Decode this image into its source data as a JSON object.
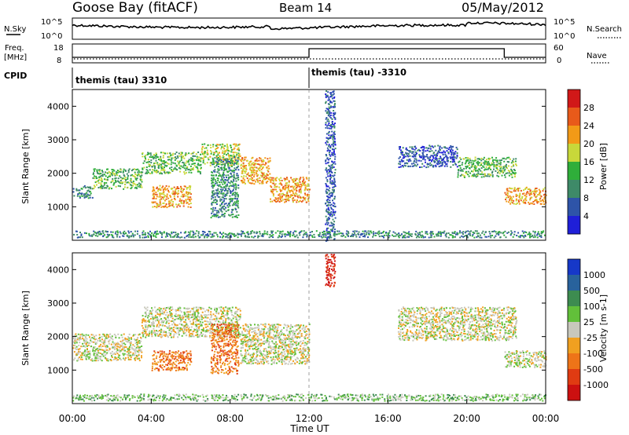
{
  "header": {
    "station": "Goose Bay (fitACF)",
    "beam": "Beam 14",
    "date": "05/May/2012"
  },
  "status_panels": {
    "nsky_label": "N.Sky",
    "nsearch_label": "N.Search",
    "freq_label_1": "Freq.",
    "freq_label_2": "[MHz]",
    "nave_label": "Nave",
    "cpid_label": "CPID",
    "noise_ticks_left": [
      "10^5",
      "10^0"
    ],
    "noise_ticks_right": [
      "10^5",
      "10^0"
    ],
    "freq_ticks": [
      "18",
      "8"
    ],
    "nave_ticks": [
      "60",
      "0"
    ],
    "cpid_segments": [
      {
        "label": "themis (tau) 3310",
        "start_hour": 0,
        "end_hour": 12
      },
      {
        "label": "themis (tau) -3310",
        "start_hour": 12,
        "end_hour": 24
      }
    ],
    "nave_step": {
      "low": 25,
      "high": 55,
      "high_start_hour": 12,
      "high_end_hour": 21.9
    }
  },
  "x_axis": {
    "label": "Time UT",
    "ticks": [
      "00:00",
      "04:00",
      "08:00",
      "12:00",
      "16:00",
      "20:00",
      "00:00"
    ]
  },
  "colors": {
    "power": [
      "#1f1fd8",
      "#2e54a8",
      "#3e8a68",
      "#2fae3a",
      "#c8d83a",
      "#f29a17",
      "#e85a1a",
      "#d11818"
    ],
    "velocity": [
      "#1638c8",
      "#28629c",
      "#3d8c50",
      "#62c03a",
      "#c8c8bc",
      "#f0a020",
      "#ee7418",
      "#e03b12",
      "#cc1010"
    ]
  },
  "chart_data": [
    {
      "type": "heatmap",
      "ylabel": "Slant Range [km]",
      "ylim": [
        0,
        4500
      ],
      "yticks": [
        "1000",
        "2000",
        "3000",
        "4000"
      ],
      "colorbar_label": "Power [dB]",
      "colorbar_ticks": [
        "4",
        "8",
        "12",
        "16",
        "20",
        "24",
        "28"
      ],
      "bands": [
        {
          "t0": 0.0,
          "t1": 1.0,
          "r0": 1280,
          "r1": 1650,
          "level": 2
        },
        {
          "t0": 1.0,
          "t1": 3.5,
          "r0": 1550,
          "r1": 2150,
          "level": 3
        },
        {
          "t0": 3.5,
          "t1": 6.5,
          "r0": 2000,
          "r1": 2650,
          "level": 3
        },
        {
          "t0": 4.0,
          "t1": 6.0,
          "r0": 1000,
          "r1": 1650,
          "level": 5
        },
        {
          "t0": 6.5,
          "t1": 8.5,
          "r0": 2250,
          "r1": 2900,
          "level": 4
        },
        {
          "t0": 7.0,
          "t1": 8.4,
          "r0": 700,
          "r1": 2500,
          "level": 2
        },
        {
          "t0": 8.5,
          "t1": 10.0,
          "r0": 1700,
          "r1": 2500,
          "level": 5
        },
        {
          "t0": 10.0,
          "t1": 12.0,
          "r0": 1150,
          "r1": 1900,
          "level": 5
        },
        {
          "t0": 12.8,
          "t1": 13.3,
          "r0": 0,
          "r1": 4500,
          "level": 1
        },
        {
          "t0": 16.5,
          "t1": 19.5,
          "r0": 2200,
          "r1": 2850,
          "level": 1
        },
        {
          "t0": 19.5,
          "t1": 22.5,
          "r0": 1900,
          "r1": 2500,
          "level": 3
        },
        {
          "t0": 21.9,
          "t1": 24.0,
          "r0": 1100,
          "r1": 1600,
          "level": 5
        },
        {
          "t0": 0.0,
          "t1": 24.0,
          "r0": 100,
          "r1": 300,
          "level": 2
        }
      ]
    },
    {
      "type": "heatmap",
      "ylabel": "Slant Range [km]",
      "ylim": [
        0,
        4500
      ],
      "yticks": [
        "1000",
        "2000",
        "3000",
        "4000"
      ],
      "colorbar_label": "Velocity [m s-1]",
      "colorbar_ticks": [
        "1000",
        "500",
        "100",
        "25",
        "-25",
        "-100",
        "-500",
        "-1000"
      ],
      "bands": [
        {
          "t0": 0.0,
          "t1": 3.5,
          "r0": 1300,
          "r1": 2100,
          "level": 4
        },
        {
          "t0": 3.5,
          "t1": 8.5,
          "r0": 2000,
          "r1": 2900,
          "level": 4
        },
        {
          "t0": 4.0,
          "t1": 6.0,
          "r0": 1000,
          "r1": 1600,
          "level": 6
        },
        {
          "t0": 7.0,
          "t1": 8.4,
          "r0": 900,
          "r1": 2400,
          "level": 6
        },
        {
          "t0": 8.5,
          "t1": 12.0,
          "r0": 1200,
          "r1": 2400,
          "level": 4
        },
        {
          "t0": 12.8,
          "t1": 13.3,
          "r0": 3500,
          "r1": 4500,
          "level": 8
        },
        {
          "t0": 16.5,
          "t1": 22.5,
          "r0": 1900,
          "r1": 2900,
          "level": 4
        },
        {
          "t0": 21.9,
          "t1": 24.0,
          "r0": 1100,
          "r1": 1600,
          "level": 4
        },
        {
          "t0": 0.0,
          "t1": 24.0,
          "r0": 100,
          "r1": 300,
          "level": 3
        }
      ]
    }
  ]
}
